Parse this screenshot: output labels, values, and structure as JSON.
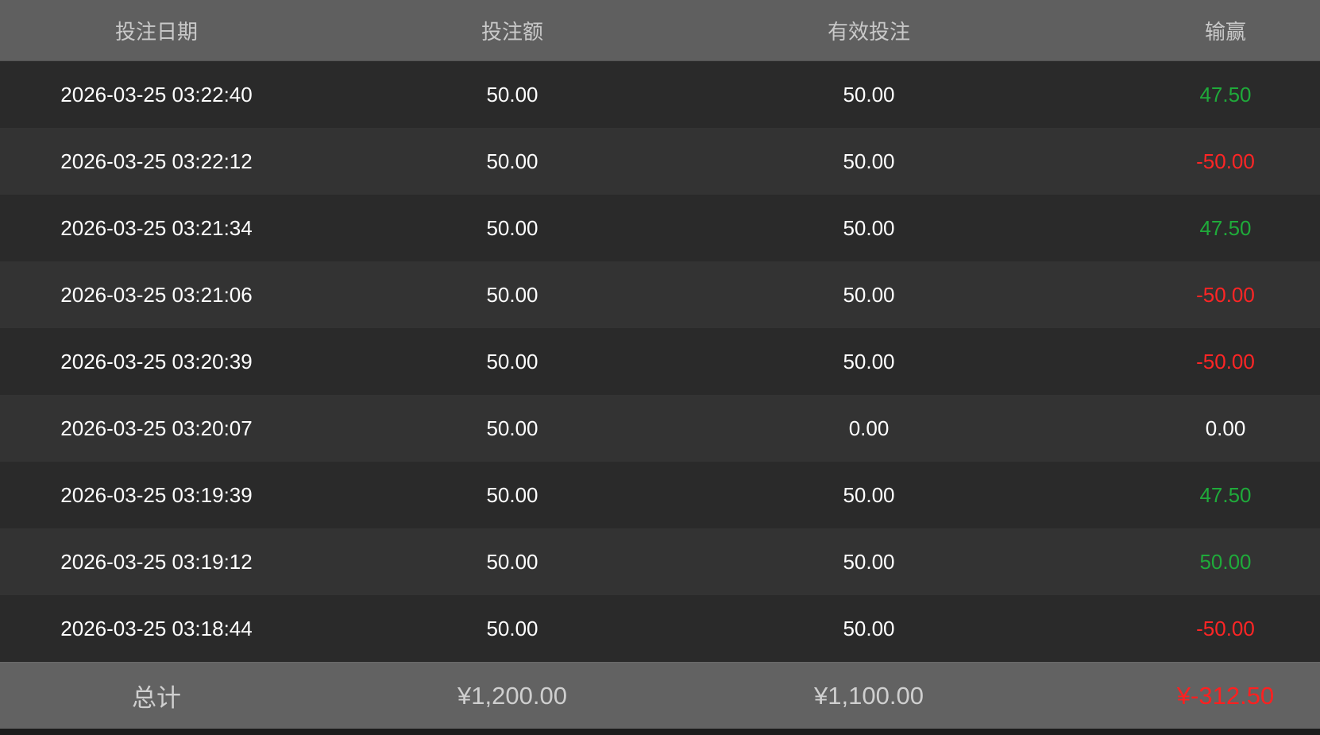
{
  "colors": {
    "positive": "#1faa3a",
    "negative": "#ff2525",
    "header_bg": "#5f5f5f"
  },
  "headers": [
    "投注日期",
    "投注额",
    "有效投注",
    "输赢"
  ],
  "rows": [
    {
      "date": "2026-03-25 03:22:40",
      "bet": "50.00",
      "valid": "50.00",
      "result": "47.50",
      "sign": "pos"
    },
    {
      "date": "2026-03-25 03:22:12",
      "bet": "50.00",
      "valid": "50.00",
      "result": "-50.00",
      "sign": "neg"
    },
    {
      "date": "2026-03-25 03:21:34",
      "bet": "50.00",
      "valid": "50.00",
      "result": "47.50",
      "sign": "pos"
    },
    {
      "date": "2026-03-25 03:21:06",
      "bet": "50.00",
      "valid": "50.00",
      "result": "-50.00",
      "sign": "neg"
    },
    {
      "date": "2026-03-25 03:20:39",
      "bet": "50.00",
      "valid": "50.00",
      "result": "-50.00",
      "sign": "neg"
    },
    {
      "date": "2026-03-25 03:20:07",
      "bet": "50.00",
      "valid": "0.00",
      "result": "0.00",
      "sign": "zero"
    },
    {
      "date": "2026-03-25 03:19:39",
      "bet": "50.00",
      "valid": "50.00",
      "result": "47.50",
      "sign": "pos"
    },
    {
      "date": "2026-03-25 03:19:12",
      "bet": "50.00",
      "valid": "50.00",
      "result": "50.00",
      "sign": "pos"
    },
    {
      "date": "2026-03-25 03:18:44",
      "bet": "50.00",
      "valid": "50.00",
      "result": "-50.00",
      "sign": "neg"
    }
  ],
  "total": {
    "label": "总计",
    "bet": "¥1,200.00",
    "valid": "¥1,100.00",
    "result": "¥-312.50"
  }
}
